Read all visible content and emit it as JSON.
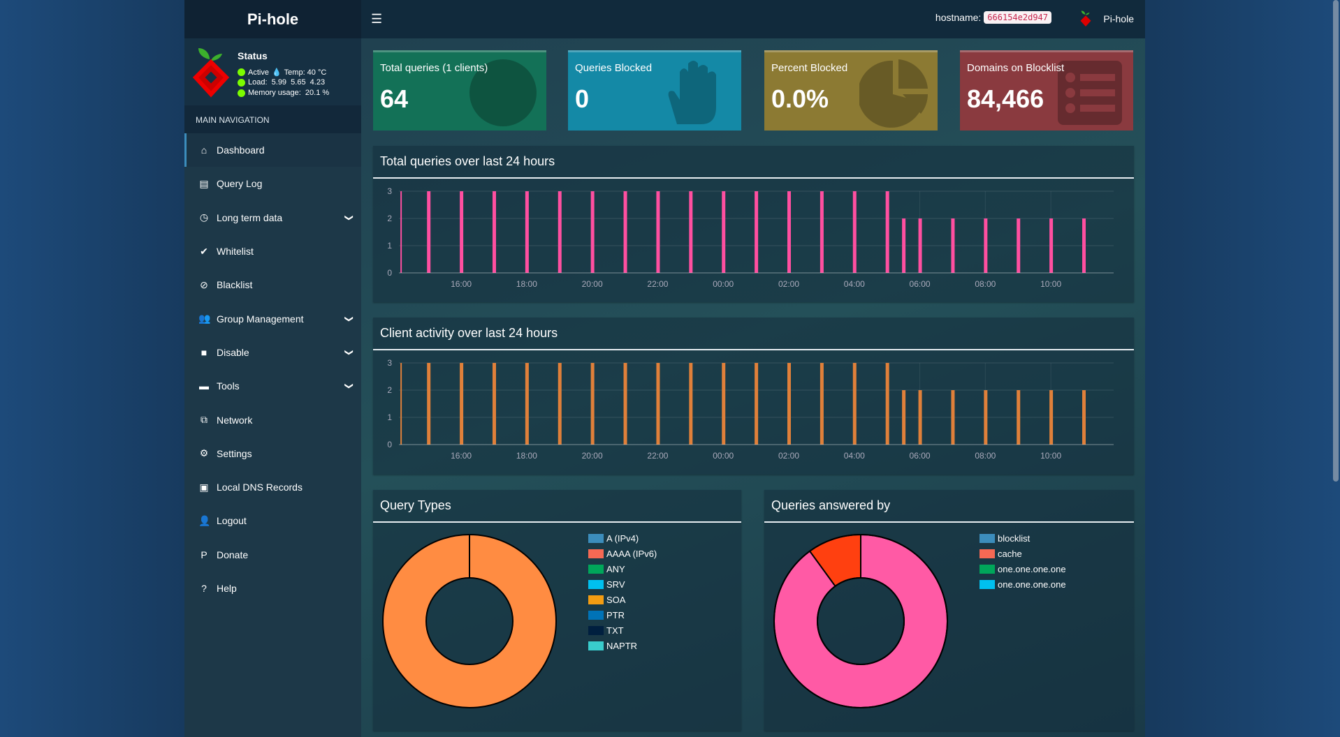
{
  "app": {
    "title": "Pi-hole"
  },
  "status": {
    "title": "Status",
    "active": "Active",
    "temp": "Temp: 40 °C",
    "load": "Load:  5.99  5.65  4.23",
    "memory": "Memory usage:  20.1 %"
  },
  "sidebar": {
    "header": "MAIN NAVIGATION",
    "items": [
      {
        "label": "Dashboard",
        "icon": "home-icon",
        "glyph": "⌂",
        "chevron": false
      },
      {
        "label": "Query Log",
        "icon": "file-icon",
        "glyph": "▤",
        "chevron": false
      },
      {
        "label": "Long term data",
        "icon": "clock-icon",
        "glyph": "◷",
        "chevron": true
      },
      {
        "label": "Whitelist",
        "icon": "check-circle-icon",
        "glyph": "✔",
        "chevron": false
      },
      {
        "label": "Blacklist",
        "icon": "ban-icon",
        "glyph": "⊘",
        "chevron": false
      },
      {
        "label": "Group Management",
        "icon": "users-icon",
        "glyph": "👥",
        "chevron": true
      },
      {
        "label": "Disable",
        "icon": "stop-icon",
        "glyph": "■",
        "chevron": true
      },
      {
        "label": "Tools",
        "icon": "folder-icon",
        "glyph": "▬",
        "chevron": true
      },
      {
        "label": "Network",
        "icon": "network-icon",
        "glyph": "⧉",
        "chevron": false
      },
      {
        "label": "Settings",
        "icon": "gears-icon",
        "glyph": "⚙",
        "chevron": false
      },
      {
        "label": "Local DNS Records",
        "icon": "address-book-icon",
        "glyph": "▣",
        "chevron": false
      },
      {
        "label": "Logout",
        "icon": "user-times-icon",
        "glyph": "👤",
        "chevron": false
      },
      {
        "label": "Donate",
        "icon": "paypal-icon",
        "glyph": "P",
        "chevron": false
      },
      {
        "label": "Help",
        "icon": "question-circle-icon",
        "glyph": "?",
        "chevron": false
      }
    ]
  },
  "header": {
    "hostname_label": "hostname:",
    "hostname": "666154e2d947",
    "user": "Pi-hole"
  },
  "stats": [
    {
      "label": "Total queries (1 clients)",
      "value": "64",
      "color": "#137157"
    },
    {
      "label": "Queries Blocked",
      "value": "0",
      "color": "#1489a6"
    },
    {
      "label": "Percent Blocked",
      "value": "0.0%",
      "color": "#8c7a33"
    },
    {
      "label": "Domains on Blocklist",
      "value": "84,466",
      "color": "#8a3a3f"
    }
  ],
  "chart_data": [
    {
      "type": "bar",
      "title": "Total queries over last 24 hours",
      "color": "#ff4fa0",
      "ylim": [
        0,
        3
      ],
      "yticks": [
        "0",
        "1",
        "2",
        "3"
      ],
      "xticks": [
        "16:00",
        "18:00",
        "20:00",
        "22:00",
        "00:00",
        "02:00",
        "04:00",
        "06:00",
        "08:00",
        "10:00"
      ],
      "x": [
        "14:10",
        "15:00",
        "16:00",
        "17:00",
        "18:00",
        "19:00",
        "20:00",
        "21:00",
        "22:00",
        "23:00",
        "00:00",
        "01:00",
        "02:00",
        "03:00",
        "04:00",
        "05:00",
        "05:30",
        "06:00",
        "07:00",
        "08:00",
        "09:00",
        "10:00",
        "11:00"
      ],
      "values": [
        3,
        3,
        3,
        3,
        3,
        3,
        3,
        3,
        3,
        3,
        3,
        3,
        3,
        3,
        3,
        3,
        2,
        2,
        2,
        2,
        2,
        2,
        2
      ]
    },
    {
      "type": "bar",
      "title": "Client activity over last 24 hours",
      "color": "#e0803a",
      "ylim": [
        0,
        3
      ],
      "yticks": [
        "0",
        "1",
        "2",
        "3"
      ],
      "xticks": [
        "16:00",
        "18:00",
        "20:00",
        "22:00",
        "00:00",
        "02:00",
        "04:00",
        "06:00",
        "08:00",
        "10:00"
      ],
      "x": [
        "14:10",
        "15:00",
        "16:00",
        "17:00",
        "18:00",
        "19:00",
        "20:00",
        "21:00",
        "22:00",
        "23:00",
        "00:00",
        "01:00",
        "02:00",
        "03:00",
        "04:00",
        "05:00",
        "05:30",
        "06:00",
        "07:00",
        "08:00",
        "09:00",
        "10:00",
        "11:00"
      ],
      "values": [
        3,
        3,
        3,
        3,
        3,
        3,
        3,
        3,
        3,
        3,
        3,
        3,
        3,
        3,
        3,
        3,
        2,
        2,
        2,
        2,
        2,
        2,
        2
      ]
    },
    {
      "type": "pie",
      "title": "Query Types",
      "values": [
        100
      ],
      "slice_colors": [
        "#ff8c42"
      ],
      "legend": [
        {
          "label": "A (IPv4)",
          "color": "#3c8dbc"
        },
        {
          "label": "AAAA (IPv6)",
          "color": "#f56954"
        },
        {
          "label": "ANY",
          "color": "#00a65a"
        },
        {
          "label": "SRV",
          "color": "#00c0ef"
        },
        {
          "label": "SOA",
          "color": "#f39c12"
        },
        {
          "label": "PTR",
          "color": "#0073b7"
        },
        {
          "label": "TXT",
          "color": "#001f3f"
        },
        {
          "label": "NAPTR",
          "color": "#39cccc"
        }
      ]
    },
    {
      "type": "pie",
      "title": "Queries answered by",
      "values": [
        90,
        10
      ],
      "slice_colors": [
        "#ff5aa5",
        "#ff4010"
      ],
      "legend": [
        {
          "label": "blocklist",
          "color": "#3c8dbc"
        },
        {
          "label": "cache",
          "color": "#f56954"
        },
        {
          "label": "one.one.one.one",
          "color": "#00a65a"
        },
        {
          "label": "one.one.one.one",
          "color": "#00c0ef"
        }
      ]
    }
  ]
}
